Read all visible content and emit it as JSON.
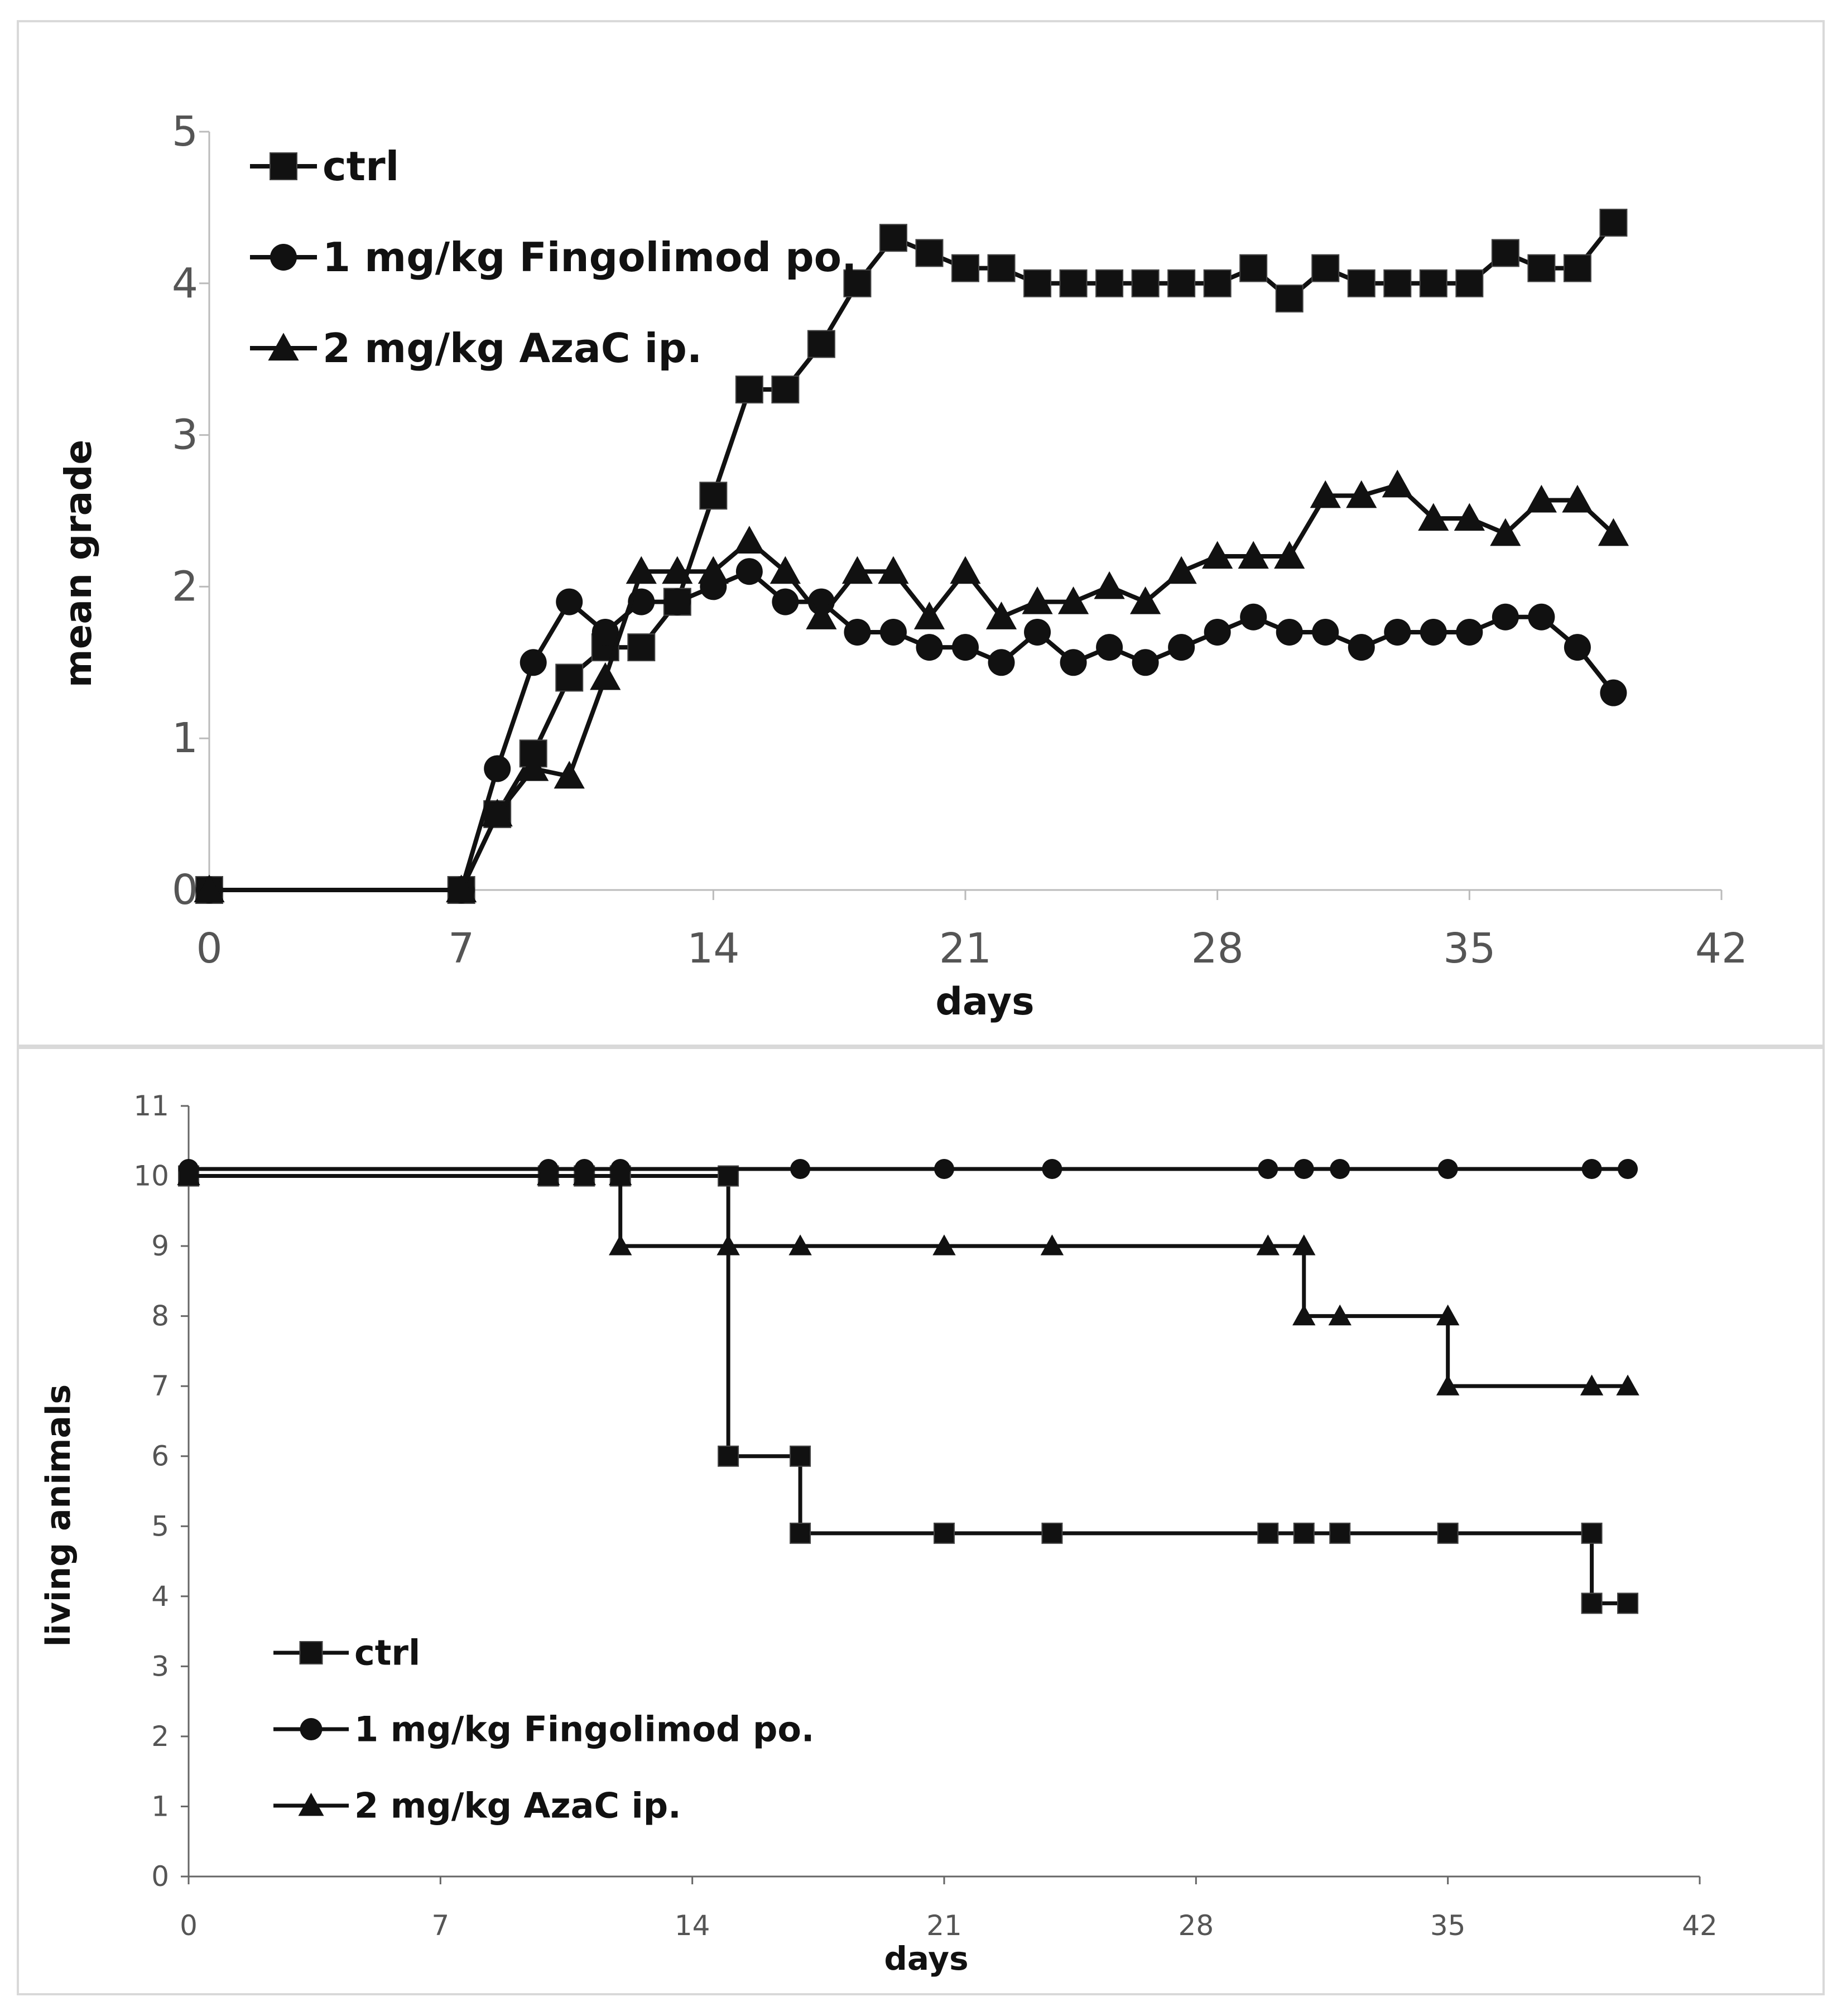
{
  "chart_data": [
    {
      "type": "line",
      "title": "",
      "xlabel": "days",
      "ylabel": "mean grade",
      "xlim": [
        0,
        42
      ],
      "ylim": [
        0,
        5
      ],
      "xticks": [
        0,
        7,
        14,
        21,
        28,
        35,
        42
      ],
      "yticks": [
        0,
        1,
        2,
        3,
        4,
        5
      ],
      "grid": false,
      "legend_position": "top-left",
      "series": [
        {
          "name": "ctrl",
          "marker": "square",
          "x": [
            0,
            7,
            8,
            9,
            10,
            11,
            12,
            13,
            14,
            15,
            16,
            17,
            18,
            19,
            20,
            21,
            22,
            23,
            24,
            25,
            26,
            27,
            28,
            29,
            30,
            31,
            32,
            33,
            34,
            35,
            36,
            37,
            38,
            39
          ],
          "y": [
            0,
            0,
            0.5,
            0.9,
            1.4,
            1.6,
            1.6,
            1.9,
            2.6,
            3.3,
            3.3,
            3.6,
            4.0,
            4.3,
            4.2,
            4.1,
            4.1,
            4.0,
            4.0,
            4.0,
            4.0,
            4.0,
            4.0,
            4.1,
            3.9,
            4.1,
            4.0,
            4.0,
            4.0,
            4.0,
            4.2,
            4.1,
            4.1,
            4.4
          ]
        },
        {
          "name": "1 mg/kg Fingolimod po.",
          "marker": "circle",
          "x": [
            0,
            7,
            8,
            9,
            10,
            11,
            12,
            13,
            14,
            15,
            16,
            17,
            18,
            19,
            20,
            21,
            22,
            23,
            24,
            25,
            26,
            27,
            28,
            29,
            30,
            31,
            32,
            33,
            34,
            35,
            36,
            37,
            38,
            39
          ],
          "y": [
            0,
            0,
            0.8,
            1.5,
            1.9,
            1.7,
            1.9,
            1.9,
            2.0,
            2.1,
            1.9,
            1.9,
            1.7,
            1.7,
            1.6,
            1.6,
            1.5,
            1.7,
            1.5,
            1.6,
            1.5,
            1.6,
            1.7,
            1.8,
            1.7,
            1.7,
            1.6,
            1.7,
            1.7,
            1.7,
            1.8,
            1.8,
            1.6,
            1.3
          ]
        },
        {
          "name": "2 mg/kg AzaC ip.",
          "marker": "triangle",
          "x": [
            0,
            7,
            8,
            9,
            10,
            11,
            12,
            13,
            14,
            15,
            16,
            17,
            18,
            19,
            20,
            21,
            22,
            23,
            24,
            25,
            26,
            27,
            28,
            29,
            30,
            31,
            32,
            33,
            34,
            35,
            36,
            37,
            38,
            39
          ],
          "y": [
            0,
            0,
            0.5,
            0.8,
            0.75,
            1.4,
            2.1,
            2.1,
            2.1,
            2.3,
            2.1,
            1.8,
            2.1,
            2.1,
            1.8,
            2.1,
            1.8,
            1.9,
            1.9,
            2.0,
            1.9,
            2.1,
            2.2,
            2.2,
            2.2,
            2.6,
            2.6,
            2.67,
            2.45,
            2.45,
            2.35,
            2.57,
            2.57,
            2.35
          ]
        }
      ]
    },
    {
      "type": "line",
      "step": true,
      "title": "",
      "xlabel": "days",
      "ylabel": "living animals",
      "xlim": [
        0,
        42
      ],
      "ylim": [
        0,
        11
      ],
      "xticks": [
        0,
        7,
        14,
        21,
        28,
        35,
        42
      ],
      "yticks": [
        0,
        1,
        2,
        3,
        4,
        5,
        6,
        7,
        8,
        9,
        10,
        11
      ],
      "grid": false,
      "legend_position": "bottom-left",
      "series": [
        {
          "name": "ctrl",
          "marker": "square",
          "x": [
            0,
            10,
            11,
            12,
            15,
            15,
            17,
            17,
            21,
            24,
            30,
            31,
            32,
            35,
            39,
            39,
            40
          ],
          "y": [
            10,
            10,
            10,
            10,
            10,
            6,
            6,
            4.9,
            4.9,
            4.9,
            4.9,
            4.9,
            4.9,
            4.9,
            4.9,
            3.9,
            3.9
          ]
        },
        {
          "name": "1 mg/kg Fingolimod po.",
          "marker": "circle",
          "x": [
            0,
            10,
            11,
            12,
            17,
            21,
            24,
            30,
            31,
            32,
            35,
            39,
            40
          ],
          "y": [
            10.1,
            10.1,
            10.1,
            10.1,
            10.1,
            10.1,
            10.1,
            10.1,
            10.1,
            10.1,
            10.1,
            10.1,
            10.1
          ]
        },
        {
          "name": "2 mg/kg AzaC ip.",
          "marker": "triangle",
          "x": [
            0,
            10,
            11,
            12,
            12,
            15,
            17,
            21,
            24,
            30,
            31,
            31,
            32,
            35,
            35,
            39,
            40
          ],
          "y": [
            10,
            10,
            10,
            10,
            9,
            9,
            9,
            9,
            9,
            9,
            9,
            8,
            8,
            8,
            7,
            7,
            7
          ]
        }
      ]
    }
  ]
}
